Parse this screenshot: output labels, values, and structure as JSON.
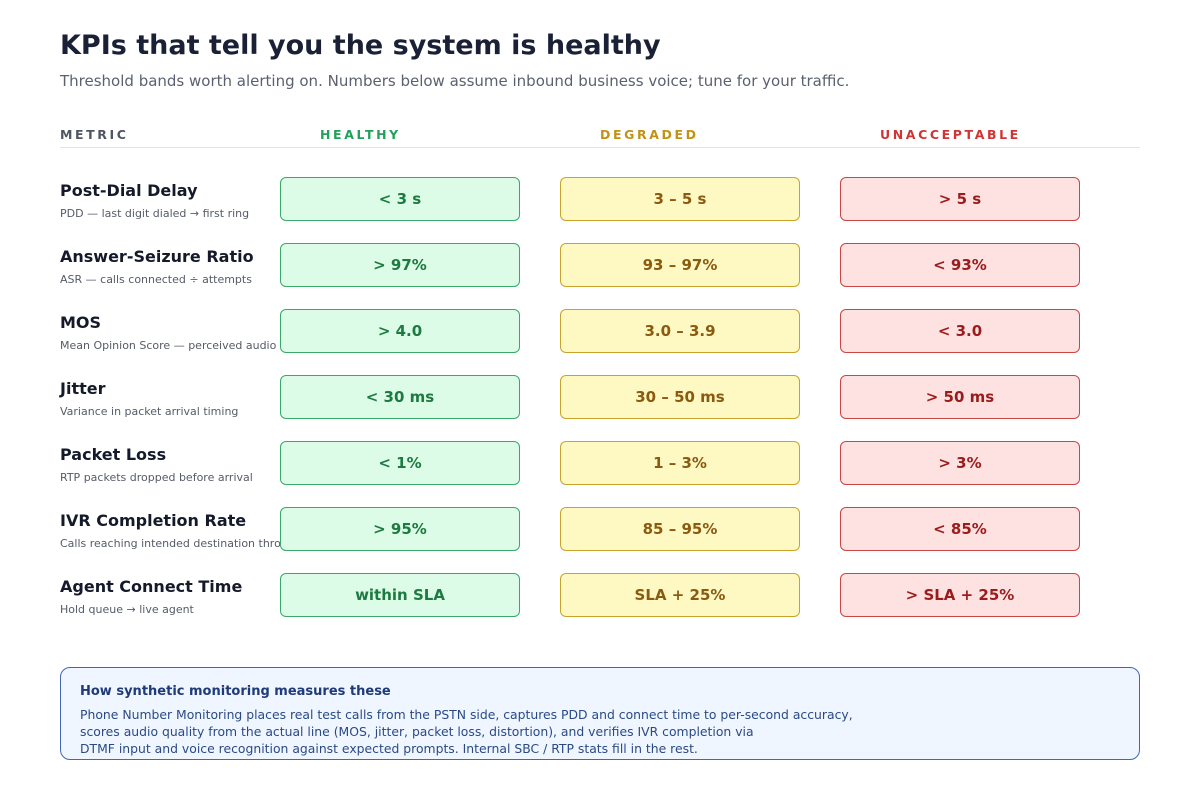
{
  "header": {
    "title": "KPIs that tell you the system is healthy",
    "subtitle": "Threshold bands worth alerting on. Numbers below assume inbound business voice; tune for your traffic."
  },
  "columns": {
    "metric": "METRIC",
    "healthy": "HEALTHY",
    "degraded": "DEGRADED",
    "unacceptable": "UNACCEPTABLE"
  },
  "colors": {
    "healthy": "#22a15a",
    "degraded": "#c09314",
    "unacceptable": "#cf3535",
    "note_border": "#4067b8"
  },
  "rows": [
    {
      "name": "Post-Dial Delay",
      "desc": "PDD — last digit dialed → first ring",
      "healthy": "< 3 s",
      "degraded": "3 – 5 s",
      "unacceptable": "> 5 s"
    },
    {
      "name": "Answer-Seizure Ratio",
      "desc": "ASR — calls connected ÷ attempts",
      "healthy": "> 97%",
      "degraded": "93 – 97%",
      "unacceptable": "< 93%"
    },
    {
      "name": "MOS",
      "desc": "Mean Opinion Score — perceived audio quality",
      "healthy": "> 4.0",
      "degraded": "3.0 – 3.9",
      "unacceptable": "< 3.0"
    },
    {
      "name": "Jitter",
      "desc": "Variance in packet arrival timing",
      "healthy": "< 30 ms",
      "degraded": "30 – 50 ms",
      "unacceptable": "> 50 ms"
    },
    {
      "name": "Packet Loss",
      "desc": "RTP packets dropped before arrival",
      "healthy": "< 1%",
      "degraded": "1 – 3%",
      "unacceptable": "> 3%"
    },
    {
      "name": "IVR Completion Rate",
      "desc": "Calls reaching intended destination through IVR",
      "healthy": "> 95%",
      "degraded": "85 – 95%",
      "unacceptable": "< 85%"
    },
    {
      "name": "Agent Connect Time",
      "desc": "Hold queue → live agent",
      "healthy": "within SLA",
      "degraded": "SLA + 25%",
      "unacceptable": "> SLA + 25%"
    }
  ],
  "note": {
    "title": "How synthetic monitoring measures these",
    "lines": [
      "Phone Number Monitoring places real test calls from the PSTN side, captures PDD and connect time to per-second accuracy,",
      "scores audio quality from the actual line (MOS, jitter, packet loss, distortion), and verifies IVR completion via",
      "DTMF input and voice recognition against expected prompts. Internal SBC / RTP stats fill in the rest."
    ]
  }
}
